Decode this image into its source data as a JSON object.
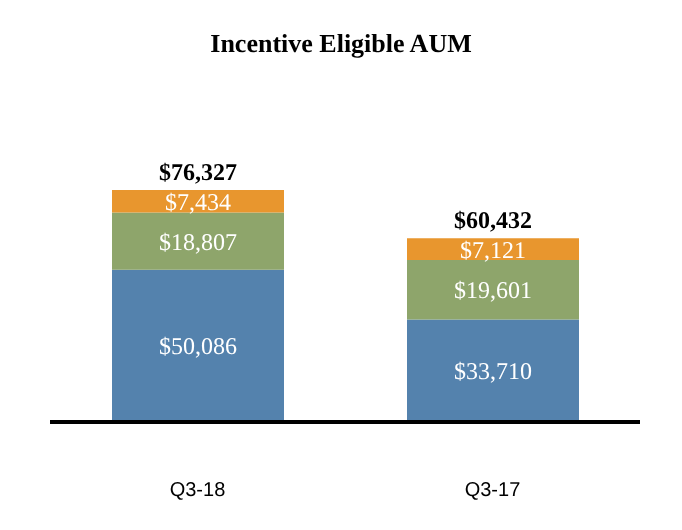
{
  "chart_data": {
    "type": "bar",
    "title": "Incentive Eligible AUM",
    "stacked": true,
    "categories": [
      "Q3-18",
      "Q3-17"
    ],
    "series": [
      {
        "color": "#5482ad",
        "values": [
          50086,
          33710
        ],
        "value_labels": [
          "$50,086",
          "$33,710"
        ]
      },
      {
        "color": "#8ea56b",
        "values": [
          18807,
          19601
        ],
        "value_labels": [
          "$18,807",
          "$19,601"
        ]
      },
      {
        "color": "#e8962e",
        "values": [
          7434,
          7121
        ],
        "value_labels": [
          "$7,434",
          "$7,121"
        ]
      }
    ],
    "totals": [
      "$76,327",
      "$60,432"
    ],
    "grid": false,
    "legend": false
  }
}
